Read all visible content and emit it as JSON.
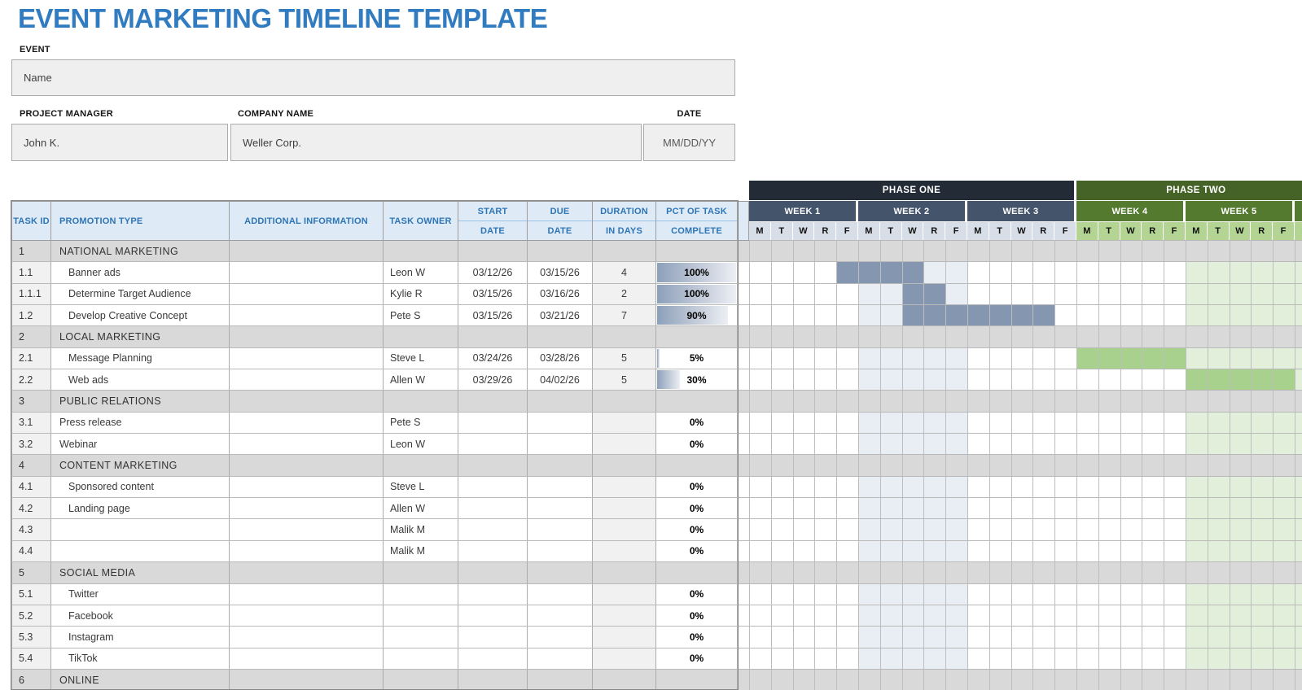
{
  "title": "EVENT MARKETING TIMELINE TEMPLATE",
  "form": {
    "event_label": "EVENT",
    "event_value": "Name",
    "pm_label": "PROJECT MANAGER",
    "pm_value": "John K.",
    "company_label": "COMPANY NAME",
    "company_value": "Weller Corp.",
    "date_label": "DATE",
    "date_value": "MM/DD/YY"
  },
  "table": {
    "headers": {
      "task_id": "TASK ID",
      "promotion_type": "PROMOTION TYPE",
      "additional_information": "ADDITIONAL INFORMATION",
      "task_owner": "TASK OWNER",
      "start_top": "START",
      "start_bottom": "DATE",
      "due_top": "DUE",
      "due_bottom": "DATE",
      "duration_top": "DURATION",
      "duration_bottom": "IN DAYS",
      "pct_top": "PCT OF TASK",
      "pct_bottom": "COMPLETE"
    },
    "rows": [
      {
        "id": "1",
        "label": "NATIONAL MARKETING",
        "type": "section"
      },
      {
        "id": "1.1",
        "label": "Banner ads",
        "type": "task",
        "indent": 2,
        "owner": "Leon W",
        "start": "03/12/26",
        "due": "03/15/26",
        "duration": "4",
        "pct": 100,
        "pct_label": "100%",
        "bar": {
          "start": 5,
          "span": 4,
          "phase": 1
        }
      },
      {
        "id": "1.1.1",
        "label": "Determine Target Audience",
        "type": "task",
        "indent": 2,
        "owner": "Kylie R",
        "start": "03/15/26",
        "due": "03/16/26",
        "duration": "2",
        "pct": 100,
        "pct_label": "100%",
        "bar": {
          "start": 8,
          "span": 2,
          "phase": 1
        }
      },
      {
        "id": "1.2",
        "label": "Develop Creative Concept",
        "type": "task",
        "indent": 2,
        "owner": "Pete S",
        "start": "03/15/26",
        "due": "03/21/26",
        "duration": "7",
        "pct": 90,
        "pct_label": "90%",
        "bar": {
          "start": 8,
          "span": 7,
          "phase": 1
        }
      },
      {
        "id": "2",
        "label": "LOCAL MARKETING",
        "type": "section"
      },
      {
        "id": "2.1",
        "label": "Message Planning",
        "type": "task",
        "indent": 2,
        "owner": "Steve L",
        "start": "03/24/26",
        "due": "03/28/26",
        "duration": "5",
        "pct": 5,
        "pct_label": "5%",
        "bar": {
          "start": 16,
          "span": 5,
          "phase": 2
        }
      },
      {
        "id": "2.2",
        "label": "Web ads",
        "type": "task",
        "indent": 2,
        "owner": "Allen W",
        "start": "03/29/26",
        "due": "04/02/26",
        "duration": "5",
        "pct": 30,
        "pct_label": "30%",
        "bar": {
          "start": 21,
          "span": 5,
          "phase": 2
        }
      },
      {
        "id": "3",
        "label": "PUBLIC RELATIONS",
        "type": "section"
      },
      {
        "id": "3.1",
        "label": "Press release",
        "type": "task",
        "indent": 1,
        "owner": "Pete S",
        "start": "",
        "due": "",
        "duration": "",
        "pct": 0,
        "pct_label": "0%",
        "bar": null
      },
      {
        "id": "3.2",
        "label": "Webinar",
        "type": "task",
        "indent": 1,
        "owner": "Leon W",
        "start": "",
        "due": "",
        "duration": "",
        "pct": 0,
        "pct_label": "0%",
        "bar": null
      },
      {
        "id": "4",
        "label": "CONTENT MARKETING",
        "type": "section"
      },
      {
        "id": "4.1",
        "label": "Sponsored content",
        "type": "task",
        "indent": 2,
        "owner": "Steve L",
        "start": "",
        "due": "",
        "duration": "",
        "pct": 0,
        "pct_label": "0%",
        "bar": null
      },
      {
        "id": "4.2",
        "label": "Landing page",
        "type": "task",
        "indent": 2,
        "owner": "Allen W",
        "start": "",
        "due": "",
        "duration": "",
        "pct": 0,
        "pct_label": "0%",
        "bar": null
      },
      {
        "id": "4.3",
        "label": "",
        "type": "task",
        "indent": 2,
        "owner": "Malik M",
        "start": "",
        "due": "",
        "duration": "",
        "pct": 0,
        "pct_label": "0%",
        "bar": null
      },
      {
        "id": "4.4",
        "label": "",
        "type": "task",
        "indent": 2,
        "owner": "Malik M",
        "start": "",
        "due": "",
        "duration": "",
        "pct": 0,
        "pct_label": "0%",
        "bar": null
      },
      {
        "id": "5",
        "label": "SOCIAL MEDIA",
        "type": "section"
      },
      {
        "id": "5.1",
        "label": "Twitter",
        "type": "task",
        "indent": 2,
        "owner": "",
        "start": "",
        "due": "",
        "duration": "",
        "pct": 0,
        "pct_label": "0%",
        "bar": null
      },
      {
        "id": "5.2",
        "label": "Facebook",
        "type": "task",
        "indent": 2,
        "owner": "",
        "start": "",
        "due": "",
        "duration": "",
        "pct": 0,
        "pct_label": "0%",
        "bar": null
      },
      {
        "id": "5.3",
        "label": "Instagram",
        "type": "task",
        "indent": 2,
        "owner": "",
        "start": "",
        "due": "",
        "duration": "",
        "pct": 0,
        "pct_label": "0%",
        "bar": null
      },
      {
        "id": "5.4",
        "label": "TikTok",
        "type": "task",
        "indent": 2,
        "owner": "",
        "start": "",
        "due": "",
        "duration": "",
        "pct": 0,
        "pct_label": "0%",
        "bar": null
      },
      {
        "id": "6",
        "label": "ONLINE",
        "type": "section"
      }
    ]
  },
  "gantt": {
    "phase1_label": "PHASE ONE",
    "phase2_label": "PHASE TWO",
    "weeks": [
      "WEEK 1",
      "WEEK 2",
      "WEEK 3",
      "WEEK 4",
      "WEEK 5"
    ],
    "day_letters": [
      "M",
      "T",
      "W",
      "R",
      "F"
    ],
    "phase1_week_count": 3,
    "total_day_columns": 26,
    "band_blue_cols": [
      6,
      10
    ],
    "band_green_cols": [
      21,
      26
    ],
    "colors": {
      "phase1": "#232B36",
      "phase1_week": "#44546A",
      "phase1_day": "#D8DEE7",
      "phase2": "#466327",
      "phase2_week": "#547A30",
      "phase2_day": "#B3D493",
      "bar_blue": "#8496B0",
      "bar_green": "#A9D18E",
      "band_blue": "#E9EDF4",
      "band_green": "#E2EFDA",
      "section_gray": "#D9D9D9",
      "header_bg": "#DEEBF7",
      "header_text": "#2E75B6",
      "title_blue": "#317CC1"
    }
  }
}
